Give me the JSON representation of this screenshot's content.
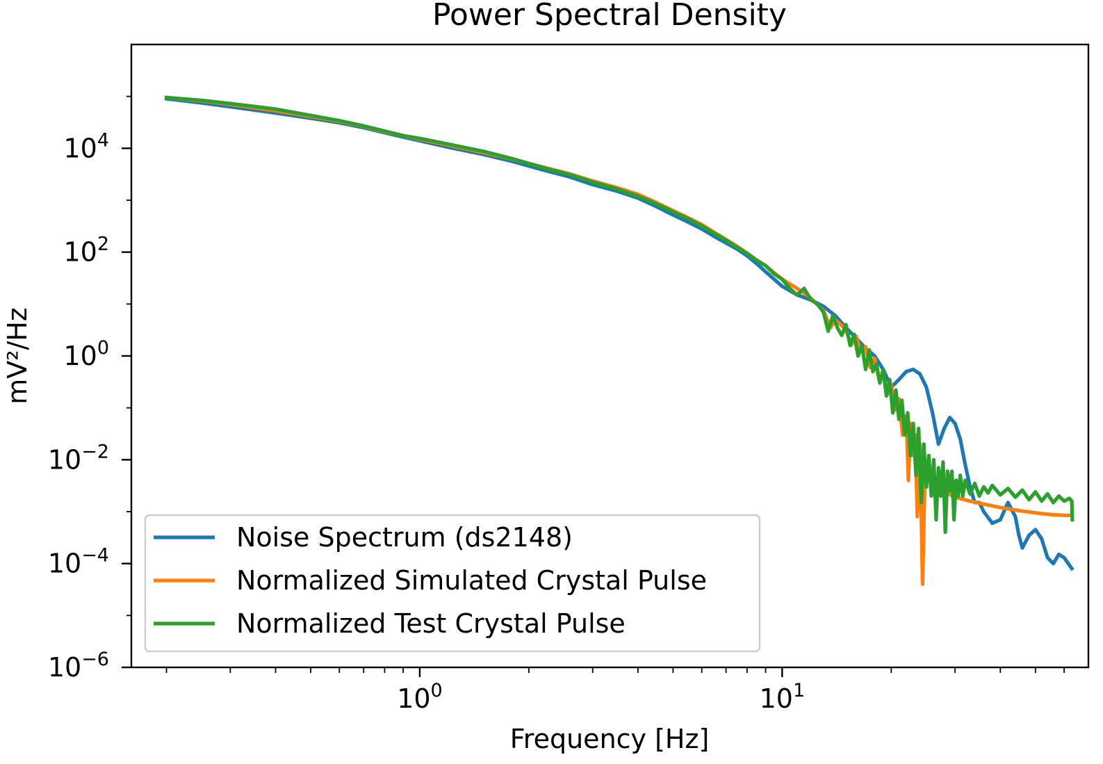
{
  "chart_data": {
    "type": "line",
    "title": "Power Spectral Density",
    "xlabel": "Frequency [Hz]",
    "ylabel": "mV²/Hz",
    "xscale": "log",
    "yscale": "log",
    "xlim": [
      0.16,
      70
    ],
    "ylim": [
      1e-06,
      1000000.0
    ],
    "x_ticks": [
      {
        "value": 1,
        "base": "10",
        "exp": "0"
      },
      {
        "value": 10,
        "base": "10",
        "exp": "1"
      }
    ],
    "y_ticks": [
      {
        "value": 10000,
        "base": "10",
        "exp": "4"
      },
      {
        "value": 100,
        "base": "10",
        "exp": "2"
      },
      {
        "value": 1,
        "base": "10",
        "exp": "0"
      },
      {
        "value": 0.01,
        "base": "10",
        "exp": "−2"
      },
      {
        "value": 0.0001,
        "base": "10",
        "exp": "−4"
      },
      {
        "value": 1e-06,
        "base": "10",
        "exp": "−6"
      }
    ],
    "grid": false,
    "legend_position": "lower-left",
    "series": [
      {
        "name": "Noise Spectrum (ds2148)",
        "color": "#1f77b4",
        "points": [
          [
            0.2,
            90000
          ],
          [
            0.25,
            75000
          ],
          [
            0.3,
            63000
          ],
          [
            0.4,
            48000
          ],
          [
            0.5,
            38000
          ],
          [
            0.6,
            31000
          ],
          [
            0.7,
            25000
          ],
          [
            0.8,
            20000
          ],
          [
            0.9,
            16500
          ],
          [
            1.0,
            14000
          ],
          [
            1.2,
            10500
          ],
          [
            1.5,
            7600
          ],
          [
            1.8,
            5600
          ],
          [
            2.2,
            3800
          ],
          [
            2.6,
            2800
          ],
          [
            3.0,
            2000
          ],
          [
            3.5,
            1500
          ],
          [
            4.0,
            1100
          ],
          [
            4.5,
            750
          ],
          [
            5.0,
            520
          ],
          [
            5.5,
            380
          ],
          [
            6.0,
            280
          ],
          [
            6.5,
            200
          ],
          [
            7.0,
            150
          ],
          [
            7.5,
            115
          ],
          [
            8.0,
            85
          ],
          [
            8.5,
            60
          ],
          [
            9.0,
            42
          ],
          [
            9.5,
            30
          ],
          [
            10.0,
            22
          ],
          [
            11.0,
            15
          ],
          [
            12.0,
            12
          ],
          [
            13.0,
            9
          ],
          [
            14.0,
            6
          ],
          [
            15.0,
            3.5
          ],
          [
            16.0,
            2.2
          ],
          [
            17.0,
            1.4
          ],
          [
            18.0,
            1.0
          ],
          [
            19.0,
            0.55
          ],
          [
            20.0,
            0.25
          ],
          [
            21.0,
            0.35
          ],
          [
            22.0,
            0.5
          ],
          [
            23.0,
            0.55
          ],
          [
            24.0,
            0.45
          ],
          [
            25.0,
            0.25
          ],
          [
            26.0,
            0.08
          ],
          [
            27.0,
            0.02
          ],
          [
            28.0,
            0.04
          ],
          [
            29.0,
            0.065
          ],
          [
            30.0,
            0.05
          ],
          [
            31.0,
            0.025
          ],
          [
            32.0,
            0.008
          ],
          [
            33.0,
            0.003
          ],
          [
            34.0,
            0.0015
          ],
          [
            35.0,
            0.0015
          ],
          [
            36.0,
            0.001
          ],
          [
            38.0,
            0.0006
          ],
          [
            40.0,
            0.0007
          ],
          [
            42.0,
            0.0015
          ],
          [
            44.0,
            0.0008
          ],
          [
            45.0,
            0.00035
          ],
          [
            46.0,
            0.0002
          ],
          [
            48.0,
            0.00035
          ],
          [
            50.0,
            0.00045
          ],
          [
            52.0,
            0.0003
          ],
          [
            54.0,
            0.00013
          ],
          [
            56.0,
            0.0001
          ],
          [
            58.0,
            0.00015
          ],
          [
            60.0,
            0.00013
          ],
          [
            63.0,
            8e-05
          ]
        ]
      },
      {
        "name": "Normalized Simulated Crystal Pulse",
        "color": "#ff7f0e",
        "points": [
          [
            0.2,
            95000
          ],
          [
            0.25,
            82000
          ],
          [
            0.3,
            70000
          ],
          [
            0.4,
            53000
          ],
          [
            0.5,
            41000
          ],
          [
            0.6,
            33000
          ],
          [
            0.7,
            26500
          ],
          [
            0.8,
            21000
          ],
          [
            0.9,
            17500
          ],
          [
            1.0,
            15000
          ],
          [
            1.2,
            11500
          ],
          [
            1.5,
            8300
          ],
          [
            1.8,
            6200
          ],
          [
            2.2,
            4300
          ],
          [
            2.6,
            3200
          ],
          [
            3.0,
            2350
          ],
          [
            3.5,
            1750
          ],
          [
            4.0,
            1300
          ],
          [
            4.5,
            900
          ],
          [
            5.0,
            630
          ],
          [
            5.5,
            460
          ],
          [
            6.0,
            340
          ],
          [
            6.5,
            240
          ],
          [
            7.0,
            175
          ],
          [
            7.5,
            130
          ],
          [
            8.0,
            95
          ],
          [
            8.5,
            70
          ],
          [
            9.0,
            55
          ],
          [
            9.5,
            40
          ],
          [
            10.0,
            30
          ],
          [
            11.0,
            20
          ],
          [
            12.0,
            13
          ],
          [
            13.0,
            7.5
          ],
          [
            13.6,
            3.5
          ],
          [
            14.0,
            5
          ],
          [
            14.5,
            4
          ],
          [
            15.0,
            3.2
          ],
          [
            15.5,
            1.6
          ],
          [
            16.0,
            2.4
          ],
          [
            16.5,
            1.2
          ],
          [
            17.0,
            1.5
          ],
          [
            17.5,
            0.6
          ],
          [
            18.0,
            0.9
          ],
          [
            18.5,
            0.35
          ],
          [
            19.0,
            0.45
          ],
          [
            19.5,
            0.18
          ],
          [
            20.0,
            0.28
          ],
          [
            20.5,
            0.09
          ],
          [
            21.0,
            0.15
          ],
          [
            21.5,
            0.03
          ],
          [
            22.0,
            0.07
          ],
          [
            22.3,
            0.004
          ],
          [
            22.6,
            0.05
          ],
          [
            23.0,
            0.012
          ],
          [
            23.3,
            0.03
          ],
          [
            23.6,
            0.0008
          ],
          [
            24.0,
            0.02
          ],
          [
            24.4,
            4e-05
          ],
          [
            24.8,
            0.008
          ],
          [
            25.2,
            0.004
          ],
          [
            25.6,
            0.005
          ],
          [
            26.5,
            0.0028
          ],
          [
            28.0,
            0.0024
          ],
          [
            30.0,
            0.0019
          ],
          [
            33.0,
            0.0016
          ],
          [
            36.0,
            0.0014
          ],
          [
            40.0,
            0.0012
          ],
          [
            45.0,
            0.00105
          ],
          [
            50.0,
            0.00095
          ],
          [
            55.0,
            0.00088
          ],
          [
            60.0,
            0.00085
          ],
          [
            63.0,
            0.00085
          ]
        ]
      },
      {
        "name": "Normalized Test Crystal Pulse",
        "color": "#2ca02c",
        "points": [
          [
            0.2,
            95000
          ],
          [
            0.25,
            84000
          ],
          [
            0.3,
            73000
          ],
          [
            0.4,
            57000
          ],
          [
            0.5,
            43000
          ],
          [
            0.6,
            34000
          ],
          [
            0.7,
            27000
          ],
          [
            0.8,
            21500
          ],
          [
            0.9,
            17500
          ],
          [
            1.0,
            15500
          ],
          [
            1.2,
            12000
          ],
          [
            1.5,
            8700
          ],
          [
            1.8,
            6300
          ],
          [
            2.2,
            4200
          ],
          [
            2.6,
            3100
          ],
          [
            3.0,
            2250
          ],
          [
            3.5,
            1650
          ],
          [
            4.0,
            1200
          ],
          [
            4.5,
            850
          ],
          [
            5.0,
            600
          ],
          [
            5.5,
            440
          ],
          [
            6.0,
            320
          ],
          [
            6.5,
            230
          ],
          [
            7.0,
            170
          ],
          [
            7.5,
            125
          ],
          [
            8.0,
            95
          ],
          [
            8.5,
            70
          ],
          [
            9.0,
            55
          ],
          [
            9.5,
            38
          ],
          [
            10.0,
            30
          ],
          [
            10.5,
            20
          ],
          [
            11.0,
            15
          ],
          [
            11.5,
            20
          ],
          [
            12.0,
            12
          ],
          [
            12.5,
            10
          ],
          [
            13.0,
            7
          ],
          [
            13.4,
            3
          ],
          [
            13.8,
            6
          ],
          [
            14.2,
            3.5
          ],
          [
            14.6,
            2.5
          ],
          [
            15.0,
            4
          ],
          [
            15.4,
            1.6
          ],
          [
            15.8,
            2.6
          ],
          [
            16.2,
            1.0
          ],
          [
            16.6,
            1.6
          ],
          [
            17.0,
            0.55
          ],
          [
            17.4,
            1.3
          ],
          [
            17.8,
            0.5
          ],
          [
            18.2,
            0.7
          ],
          [
            18.6,
            0.3
          ],
          [
            19.0,
            0.55
          ],
          [
            19.4,
            0.17
          ],
          [
            19.8,
            0.35
          ],
          [
            20.2,
            0.08
          ],
          [
            20.6,
            0.22
          ],
          [
            21.0,
            0.06
          ],
          [
            21.4,
            0.14
          ],
          [
            21.8,
            0.03
          ],
          [
            22.2,
            0.08
          ],
          [
            22.6,
            0.012
          ],
          [
            23.0,
            0.05
          ],
          [
            23.4,
            0.005
          ],
          [
            23.8,
            0.04
          ],
          [
            24.2,
            0.0015
          ],
          [
            24.6,
            0.02
          ],
          [
            25.0,
            0.003
          ],
          [
            25.4,
            0.012
          ],
          [
            25.8,
            0.002
          ],
          [
            26.2,
            0.01
          ],
          [
            26.6,
            0.0007
          ],
          [
            27.0,
            0.007
          ],
          [
            27.4,
            0.002
          ],
          [
            27.8,
            0.009
          ],
          [
            28.2,
            0.0004
          ],
          [
            28.6,
            0.006
          ],
          [
            29.0,
            0.0025
          ],
          [
            29.4,
            0.006
          ],
          [
            29.8,
            0.0007
          ],
          [
            30.2,
            0.004
          ],
          [
            30.6,
            0.002
          ],
          [
            31.0,
            0.005
          ],
          [
            31.5,
            0.002
          ],
          [
            32.0,
            0.004
          ],
          [
            33.0,
            0.0022
          ],
          [
            34.0,
            0.0035
          ],
          [
            35.0,
            0.002
          ],
          [
            36.0,
            0.003
          ],
          [
            37.0,
            0.0023
          ],
          [
            38.0,
            0.0032
          ],
          [
            40.0,
            0.0021
          ],
          [
            42.0,
            0.0028
          ],
          [
            44.0,
            0.0019
          ],
          [
            46.0,
            0.0026
          ],
          [
            48.0,
            0.0017
          ],
          [
            50.0,
            0.0024
          ],
          [
            52.0,
            0.0016
          ],
          [
            54.0,
            0.0022
          ],
          [
            56.0,
            0.0015
          ],
          [
            58.0,
            0.002
          ],
          [
            60.0,
            0.0016
          ],
          [
            62.0,
            0.0018
          ],
          [
            63.0,
            0.0016
          ],
          [
            63.2,
            0.0007
          ]
        ]
      }
    ]
  }
}
